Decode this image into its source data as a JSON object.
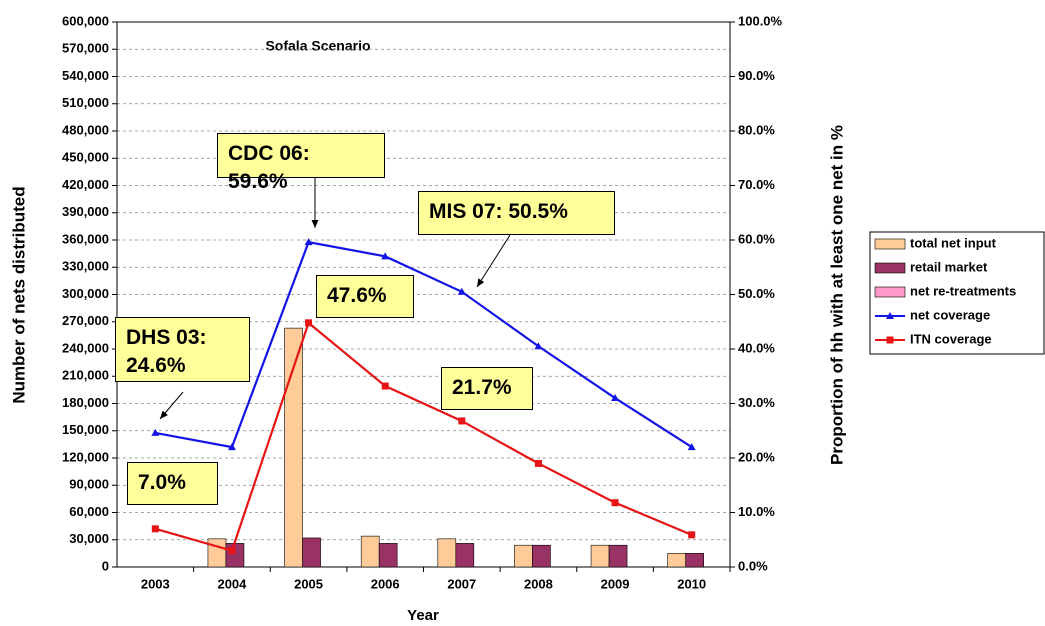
{
  "chart_data": {
    "type": "bar-line",
    "title": "Sofala Scenario",
    "x_label": "Year",
    "y_label": "Number of nets distributed",
    "y2_label": "Proportion of hh with at least one net in %",
    "categories": [
      "2003",
      "2004",
      "2005",
      "2006",
      "2007",
      "2008",
      "2009",
      "2010"
    ],
    "series": [
      {
        "name": "total net input",
        "type": "bar",
        "color": "#ffcc99",
        "values": [
          0,
          31000,
          263000,
          34000,
          31000,
          24000,
          24000,
          15000
        ]
      },
      {
        "name": "retail market",
        "type": "bar",
        "color": "#993366",
        "values": [
          0,
          26000,
          32000,
          26000,
          26000,
          24000,
          24000,
          15000
        ]
      },
      {
        "name": "net re-treatments",
        "type": "bar",
        "color": "#ff99cc",
        "values": [
          0,
          0,
          0,
          0,
          0,
          0,
          0,
          0
        ]
      },
      {
        "name": "net coverage",
        "type": "line",
        "axis": "y2",
        "marker": "triangle",
        "color": "#1414e6",
        "values": [
          24.6,
          22.0,
          59.6,
          57.0,
          50.5,
          40.5,
          31.0,
          22.0
        ]
      },
      {
        "name": "ITN coverage",
        "type": "line",
        "axis": "y2",
        "marker": "square",
        "color": "#e61414",
        "values": [
          7.0,
          3.0,
          44.8,
          33.2,
          26.8,
          19.0,
          11.8,
          5.9
        ]
      }
    ],
    "ylim": [
      0,
      600000
    ],
    "yticks": [
      0,
      {
        "value": 30000,
        "label": "30,000"
      },
      {
        "value": 60000,
        "label": "60,000"
      },
      {
        "value": 90000,
        "label": "90,000"
      },
      {
        "value": 120000,
        "label": "120,000"
      },
      {
        "value": 150000,
        "label": "150,000"
      },
      {
        "value": 180000,
        "label": "180,000"
      },
      {
        "value": 210000,
        "label": "210,000"
      },
      {
        "value": 240000,
        "label": "240,000"
      },
      {
        "value": 270000,
        "label": "270,000"
      },
      {
        "value": 300000,
        "label": "300,000"
      },
      {
        "value": 330000,
        "label": "330,000"
      },
      {
        "value": 360000,
        "label": "360,000"
      },
      {
        "value": 390000,
        "label": "390,000"
      },
      {
        "value": 420000,
        "label": "420,000"
      },
      {
        "value": 450000,
        "label": "450,000"
      },
      {
        "value": 480000,
        "label": "480,000"
      },
      {
        "value": 510000,
        "label": "510,000"
      },
      {
        "value": 540000,
        "label": "540,000"
      },
      {
        "value": 570000,
        "label": "570,000"
      },
      {
        "value": 600000,
        "label": "600,000"
      }
    ],
    "y2lim": [
      0,
      100
    ],
    "y2ticks": [
      {
        "value": 0,
        "label": "0.0%"
      },
      {
        "value": 10,
        "label": "10.0%"
      },
      {
        "value": 20,
        "label": "20.0%"
      },
      {
        "value": 30,
        "label": "30.0%"
      },
      {
        "value": 40,
        "label": "40.0%"
      },
      {
        "value": 50,
        "label": "50.0%"
      },
      {
        "value": 60,
        "label": "60.0%"
      },
      {
        "value": 70,
        "label": "70.0%"
      },
      {
        "value": 80,
        "label": "80.0%"
      },
      {
        "value": 90,
        "label": "90.0%"
      },
      {
        "value": 100,
        "label": "100.0%"
      }
    ],
    "grid": true,
    "legend": "right",
    "annotations": [
      "CDC 06: 59.6%",
      "MIS 07: 50.5%",
      "47.6%",
      "DHS 03: 24.6%",
      "21.7%",
      "7.0%"
    ]
  }
}
